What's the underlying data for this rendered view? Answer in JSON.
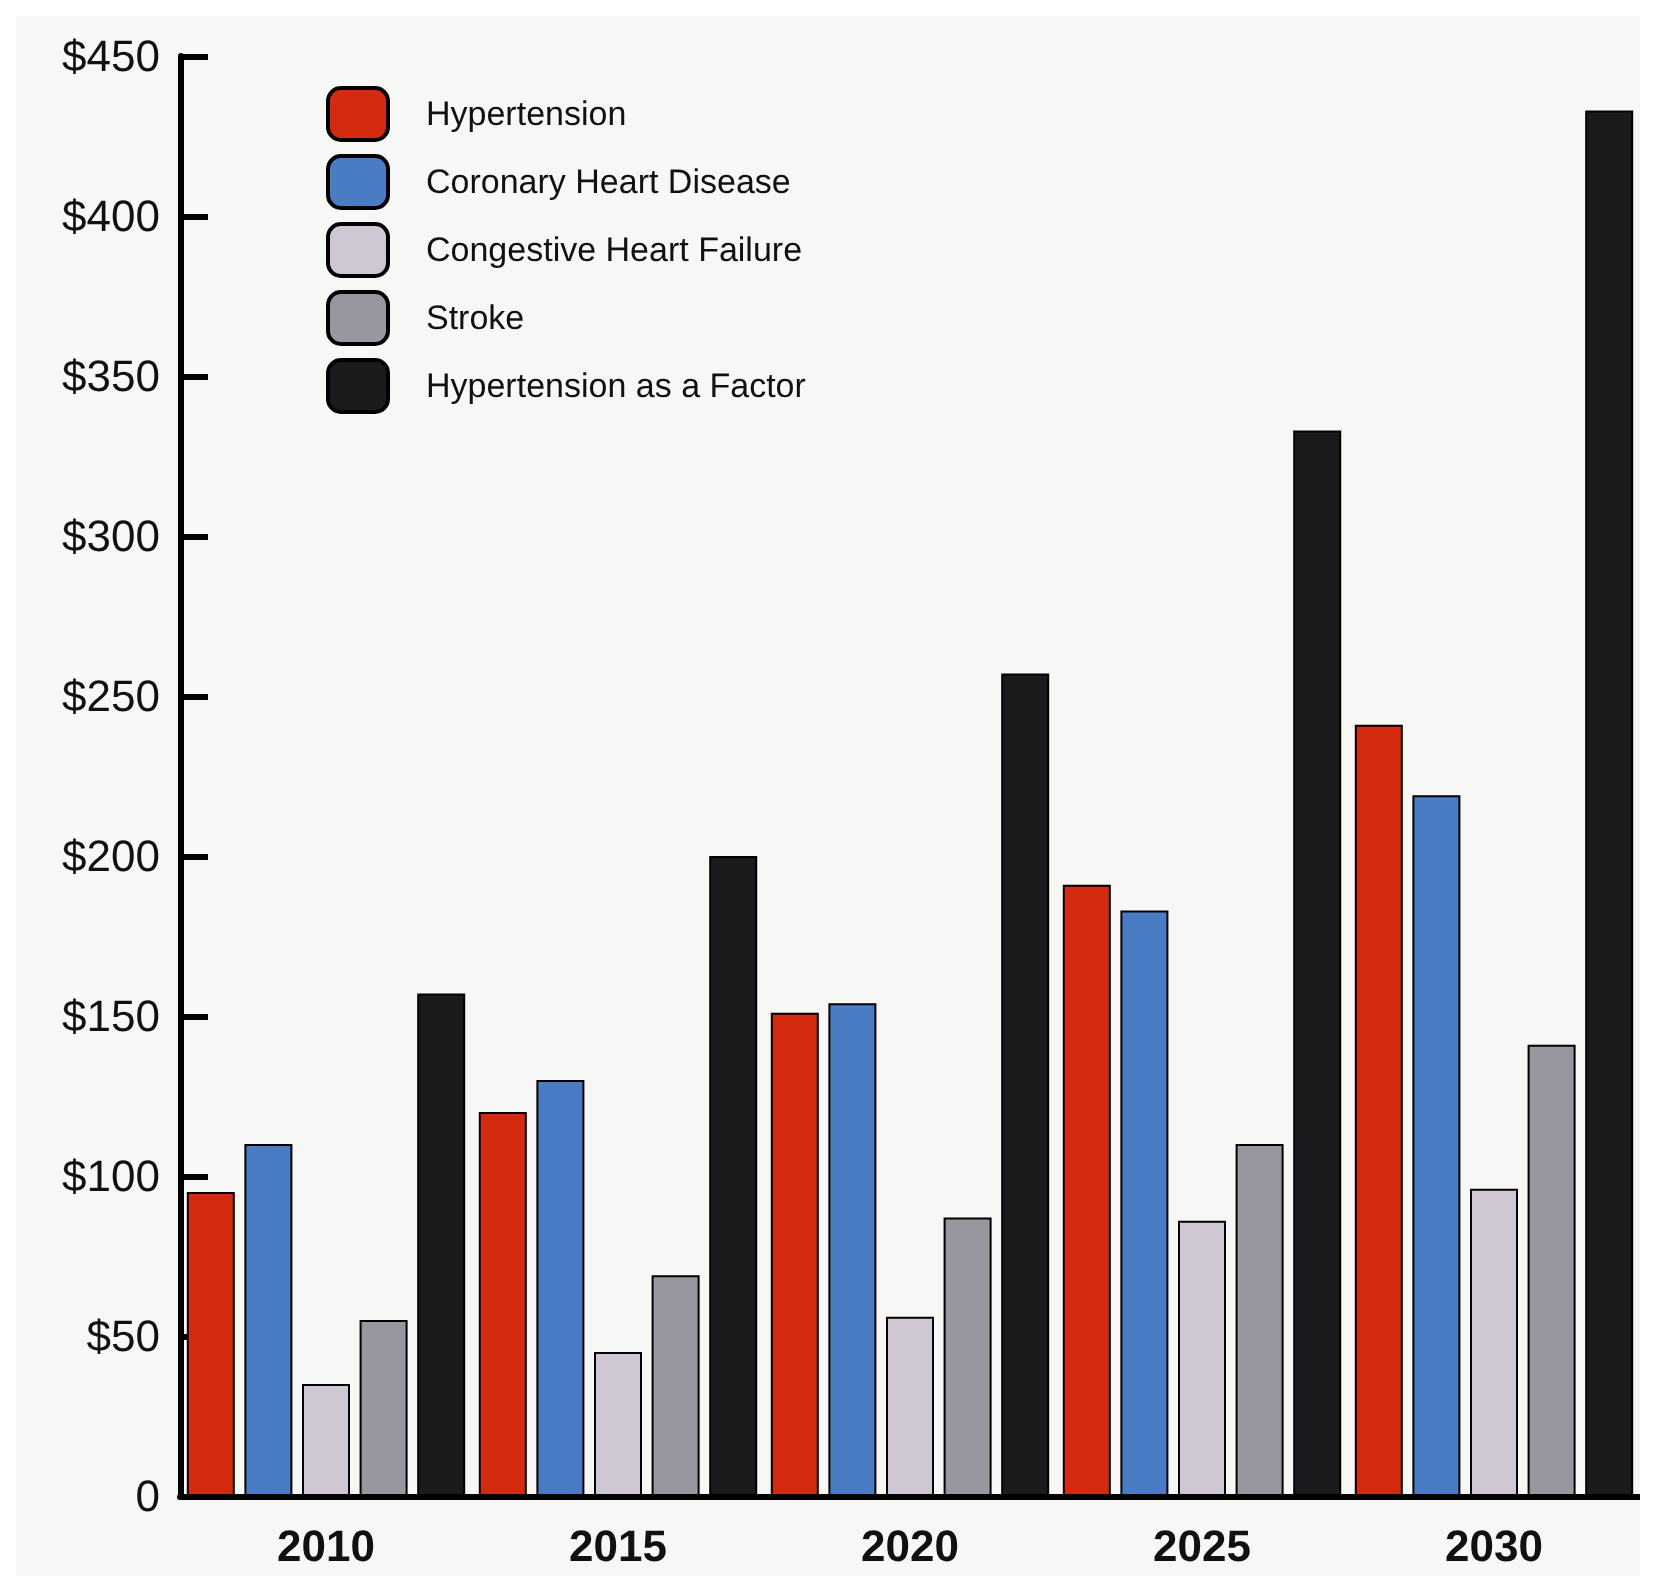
{
  "chart_data": {
    "type": "bar",
    "categories": [
      "2010",
      "2015",
      "2020",
      "2025",
      "2030"
    ],
    "series": [
      {
        "name": "Hypertension",
        "color": "#d42a10",
        "values": [
          95,
          120,
          151,
          191,
          241
        ]
      },
      {
        "name": "Coronary Heart Disease",
        "color": "#4a7cc4",
        "values": [
          110,
          130,
          154,
          183,
          219
        ]
      },
      {
        "name": "Congestive Heart Failure",
        "color": "#cfc8d4",
        "values": [
          35,
          45,
          56,
          86,
          96
        ]
      },
      {
        "name": "Stroke",
        "color": "#9a96a0",
        "values": [
          55,
          69,
          87,
          110,
          141
        ]
      },
      {
        "name": "Hypertension as a Factor",
        "color": "#1c1a1c",
        "values": [
          157,
          200,
          257,
          333,
          433
        ]
      }
    ],
    "ylim": [
      0,
      450
    ],
    "yticks": [
      {
        "value": 0,
        "label": "0"
      },
      {
        "value": 50,
        "label": "$50"
      },
      {
        "value": 100,
        "label": "$100"
      },
      {
        "value": 150,
        "label": "$150"
      },
      {
        "value": 200,
        "label": "$200"
      },
      {
        "value": 250,
        "label": "$250"
      },
      {
        "value": 300,
        "label": "$300"
      },
      {
        "value": 350,
        "label": "$350"
      },
      {
        "value": 400,
        "label": "$400"
      },
      {
        "value": 450,
        "label": "$450"
      }
    ],
    "grid": false,
    "legend": "top left"
  }
}
